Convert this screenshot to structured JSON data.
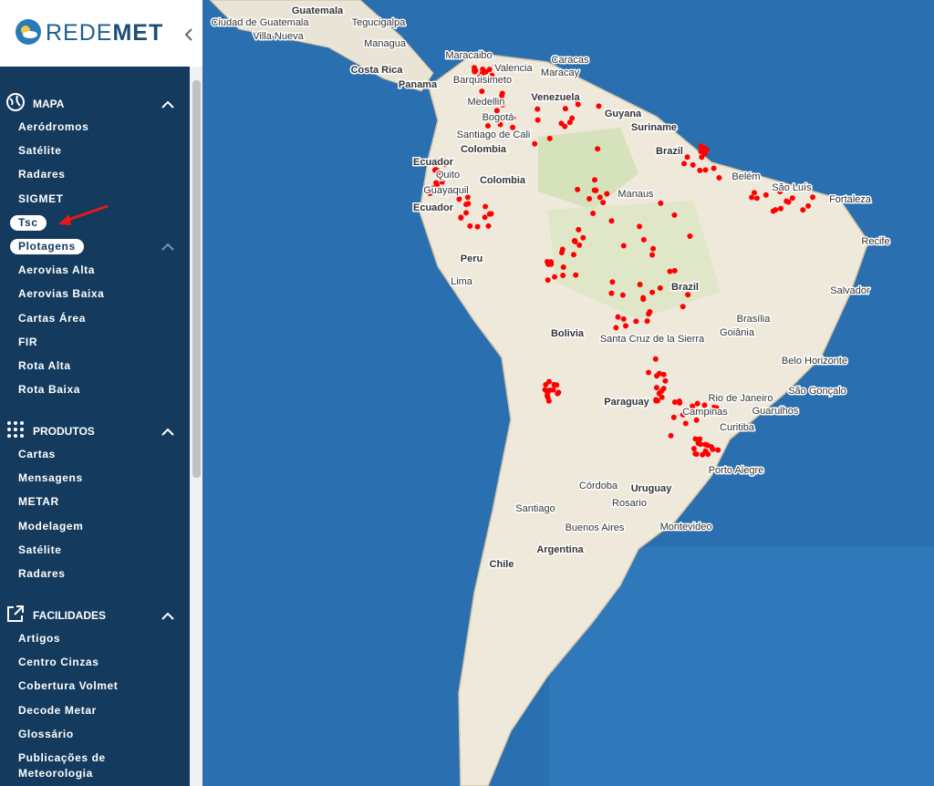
{
  "logo": {
    "light": "REDE",
    "bold": "MET"
  },
  "menu": {
    "sections": [
      {
        "title": "MAPA",
        "items": [
          "Aeródromos",
          "Satélite",
          "Radares",
          "SIGMET",
          "Tsc",
          "Plotagens",
          "Aerovias Alta",
          "Aerovias Baixa",
          "Cartas Área",
          "FIR",
          "Rota Alta",
          "Rota Baixa"
        ]
      },
      {
        "title": "PRODUTOS",
        "items": [
          "Cartas",
          "Mensagens",
          "METAR",
          "Modelagem",
          "Satélite",
          "Radares"
        ]
      },
      {
        "title": "FACILIDADES",
        "items": [
          "Artigos",
          "Centro Cinzas",
          "Cobertura Volmet",
          "Decode Metar",
          "Glossário",
          "Publicações de Meteorologia"
        ]
      }
    ]
  },
  "map": {
    "places": [
      "Guatemala",
      "Ciudad de Guatemala",
      "Tegucigalpa",
      "Villa Nueva",
      "Managua",
      "Maracaibo",
      "Caracas",
      "Valencia",
      "Maracay",
      "Costa Rica",
      "Barquisimeto",
      "Panama",
      "Venezuela",
      "Medellin",
      "Guyana",
      "Bogotá",
      "Suriname",
      "Santiago de Cali",
      "Colombia",
      "Brazil",
      "Ecuador",
      "Belém",
      "Quito",
      "Colombia",
      "Guayaquil",
      "Manaus",
      "São Luís",
      "Fortaleza",
      "Ecuador",
      "Recife",
      "Peru",
      "Lima",
      "Brazil",
      "Salvador",
      "Brasília",
      "Bolivia",
      "Goiânia",
      "Santa Cruz de la Sierra",
      "Belo Horizonte",
      "Paraguay",
      "Rio de Janeiro",
      "São Gonçalo",
      "Campinas",
      "Guarulhos",
      "Curitiba",
      "Porto Alegre",
      "Córdoba",
      "Uruguay",
      "Rosario",
      "Santiago",
      "Buenos Aires",
      "Montevideo",
      "Argentina",
      "Chile"
    ]
  }
}
